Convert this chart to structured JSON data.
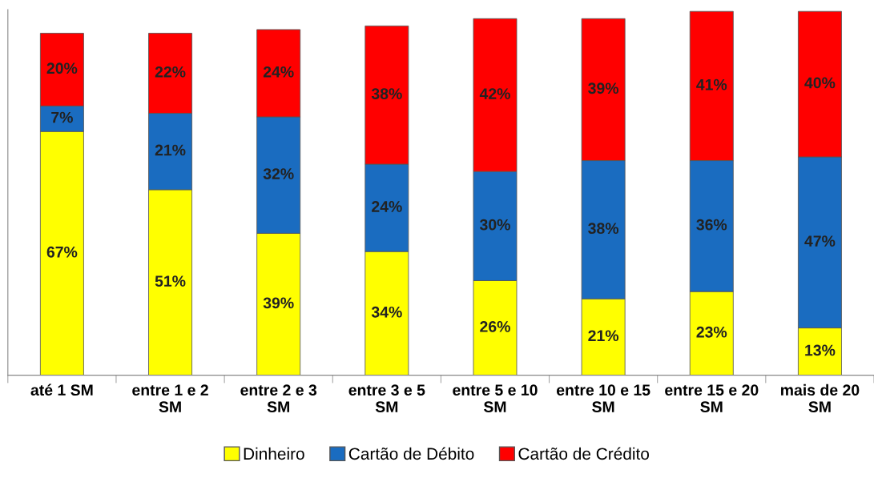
{
  "chart_data": {
    "type": "bar",
    "stacked": true,
    "legend": "bottom",
    "grid": false,
    "tick_labels": "x",
    "categories": [
      "até 1 SM",
      "entre 1 e 2 SM",
      "entre 2 e 3 SM",
      "entre 3 e 5 SM",
      "entre 5 e 10 SM",
      "entre 10 e 15 SM",
      "entre 15 e 20 SM",
      "mais de 20 SM"
    ],
    "series": [
      {
        "name": "Dinheiro",
        "color": "#ffff00",
        "values": [
          67,
          51,
          39,
          34,
          26,
          21,
          23,
          13
        ],
        "value_labels": [
          "67%",
          "51%",
          "39%",
          "34%",
          "26%",
          "21%",
          "23%",
          "13%"
        ]
      },
      {
        "name": "Cartão de Débito",
        "color": "#1a6cc0",
        "values": [
          7,
          21,
          32,
          24,
          30,
          38,
          36,
          47
        ],
        "value_labels": [
          "7%",
          "21%",
          "32%",
          "24%",
          "30%",
          "38%",
          "36%",
          "47%"
        ]
      },
      {
        "name": "Cartão de Crédito",
        "color": "#ff0000",
        "values": [
          20,
          22,
          24,
          38,
          42,
          39,
          41,
          40
        ],
        "value_labels": [
          "20%",
          "22%",
          "24%",
          "38%",
          "42%",
          "39%",
          "41%",
          "40%"
        ]
      }
    ]
  }
}
